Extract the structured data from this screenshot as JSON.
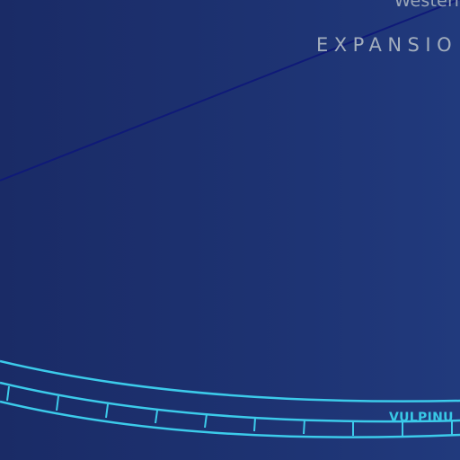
{
  "labels": {
    "top_partial": "Western",
    "region": "EXPANSIO",
    "constellation": "VULPINU"
  },
  "colors": {
    "background_left": "#1a2b66",
    "background_right": "#213a7d",
    "trajectory_line": "#0f1a78",
    "ecliptic_band": "#3ccbea",
    "label_gray": "#a3aebd",
    "label_cyan": "#38c8e6"
  }
}
